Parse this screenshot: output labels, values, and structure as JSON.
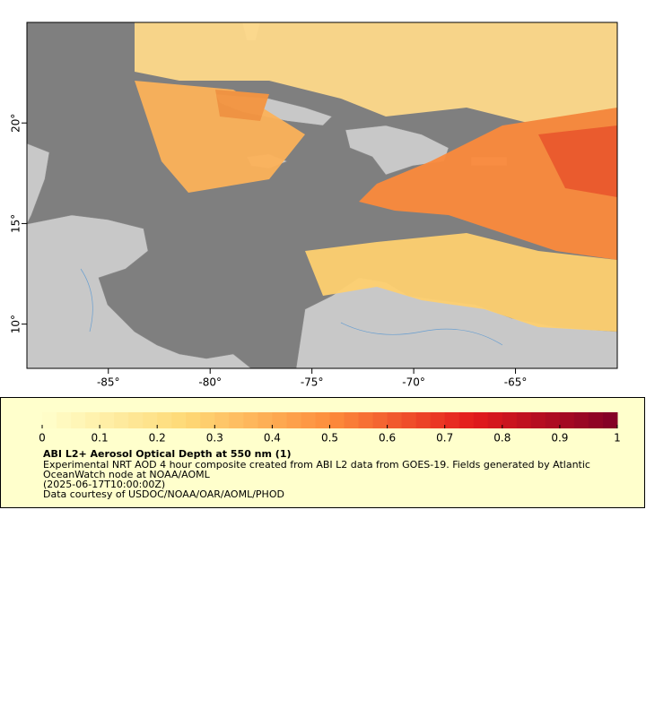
{
  "map": {
    "xlim": [
      -89,
      -60
    ],
    "ylim": [
      7.8,
      25
    ],
    "xticks": [
      {
        "value": -85,
        "label": "-85°"
      },
      {
        "value": -80,
        "label": "-80°"
      },
      {
        "value": -75,
        "label": "-75°"
      },
      {
        "value": -70,
        "label": "-70°"
      },
      {
        "value": -65,
        "label": "-65°"
      }
    ],
    "yticks": [
      {
        "value": 10,
        "label": "10°"
      },
      {
        "value": 15,
        "label": "15°"
      },
      {
        "value": 20,
        "label": "20°"
      }
    ]
  },
  "colorbar": {
    "lim": [
      0,
      1
    ],
    "ticks": [
      0,
      0.1,
      0.2,
      0.3,
      0.4,
      0.5,
      0.6,
      0.7,
      0.8,
      0.9,
      1
    ],
    "colormap": [
      "#ffffcc",
      "#fed976",
      "#fd8d3c",
      "#e31a1c",
      "#800026"
    ]
  },
  "caption": {
    "title": "ABI L2+ Aerosol Optical Depth at 550 nm (1)",
    "lines": [
      "Experimental NRT AOD 4 hour composite created from ABI L2 data from GOES-19. Fields generated by Atlantic",
      "OceanWatch node at NOAA/AOML",
      "(2025-06-17T10:00:00Z)",
      "Data courtesy of USDOC/NOAA/OAR/AOML/PHOD"
    ]
  }
}
